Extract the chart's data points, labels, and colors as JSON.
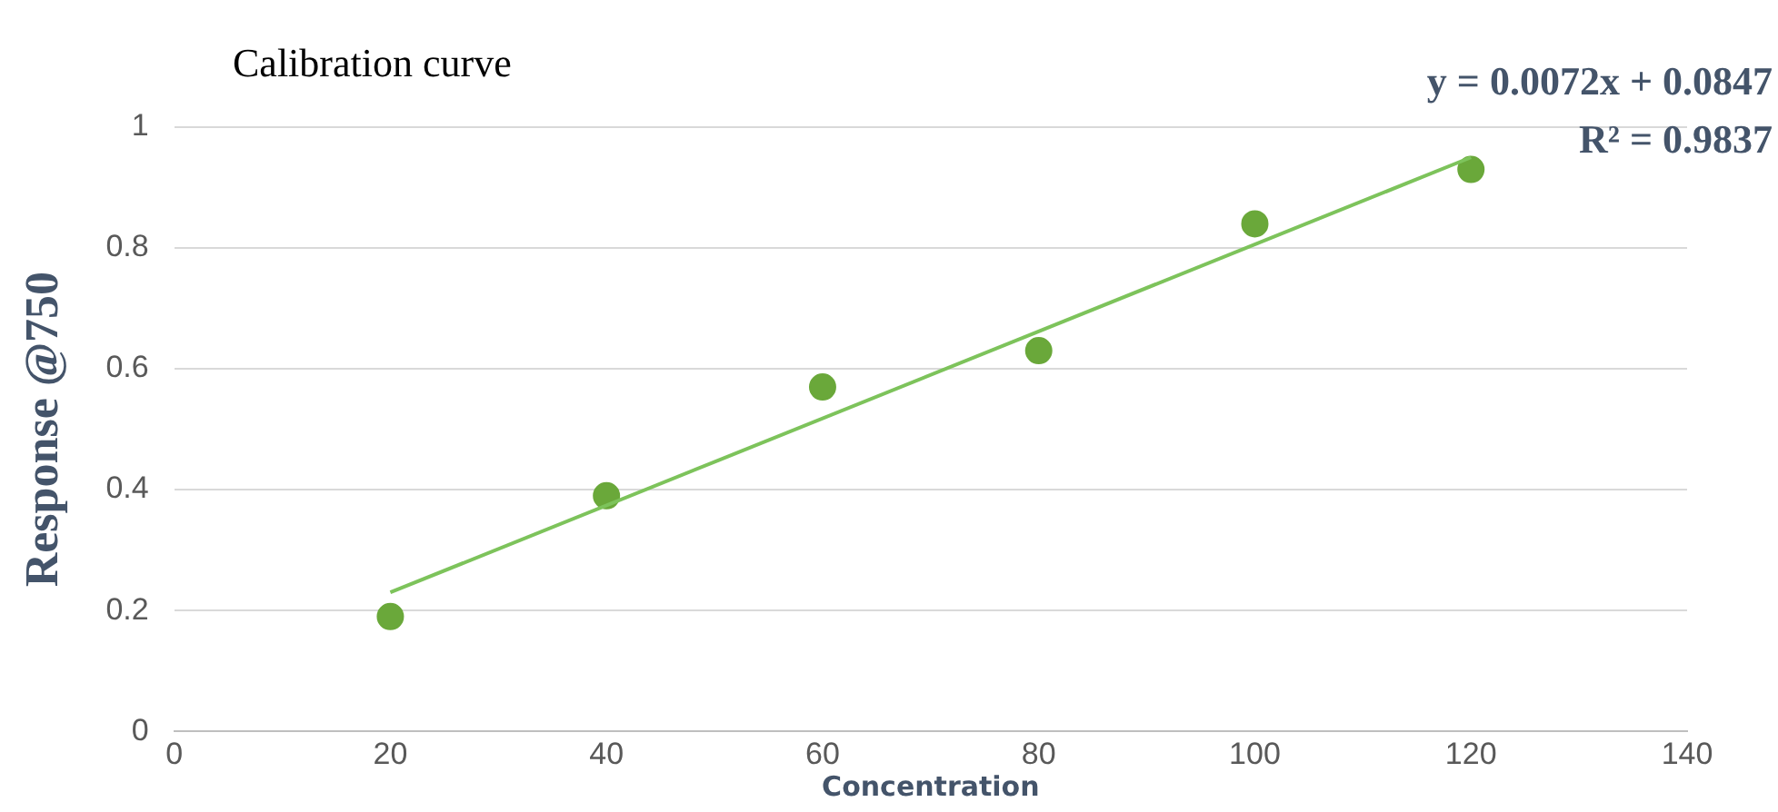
{
  "chart_data": {
    "type": "scatter",
    "title": "Calibration curve",
    "xlabel": "Concentration",
    "ylabel": "Response @750",
    "x": [
      20,
      40,
      60,
      80,
      100,
      120
    ],
    "series": [
      {
        "color": "#6aa83a",
        "marker": "circle",
        "values": [
          0.19,
          0.39,
          0.57,
          0.63,
          0.84,
          0.93
        ]
      },
      {
        "type": "line",
        "color": "#7dc35b",
        "marker": "none",
        "x": [
          20,
          120
        ],
        "values": [
          0.23,
          0.95
        ]
      }
    ],
    "xlim": [
      0,
      140
    ],
    "xticks": [
      0,
      20,
      40,
      60,
      80,
      100,
      120,
      140
    ],
    "ylim": [
      0,
      1
    ],
    "yticks": [
      0,
      0.2,
      0.4,
      0.6,
      0.8,
      1
    ],
    "grid": "y",
    "line_style": "solid",
    "annotations": [
      "y = 0.0072x + 0.0847",
      "R² = 0.9837"
    ]
  }
}
